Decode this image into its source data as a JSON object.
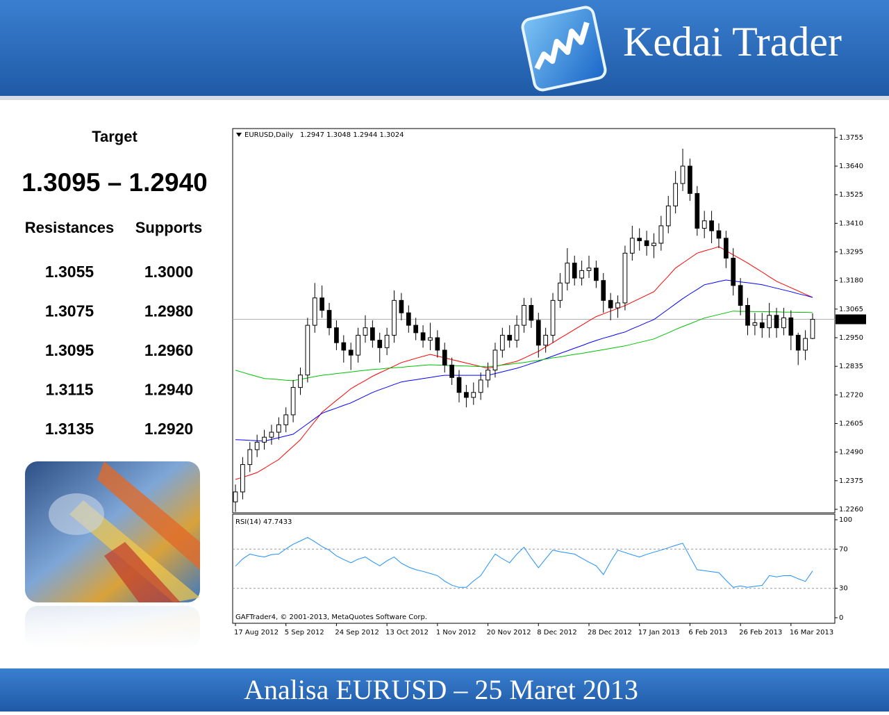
{
  "header": {
    "brand": "Kedai Trader"
  },
  "panel": {
    "target_label": "Target",
    "target": "1.3095 – 1.2940",
    "resistances_label": "Resistances",
    "supports_label": "Supports",
    "resistances": [
      "1.3055",
      "1.3075",
      "1.3095",
      "1.3115",
      "1.3135"
    ],
    "supports": [
      "1.3000",
      "1.2980",
      "1.2960",
      "1.2940",
      "1.2920"
    ]
  },
  "chart_data": [
    {
      "type": "candlestick",
      "title": "EURUSD,Daily",
      "subtitle": "1.2947 1.3048 1.2944 1.3024",
      "up_color": "#ffffff",
      "down_color": "#000000",
      "categories": [
        "17 Aug 2012",
        null,
        null,
        null,
        null,
        null,
        null,
        "5 Sep 2012",
        null,
        null,
        null,
        null,
        null,
        null,
        "24 Sep 2012",
        null,
        null,
        null,
        null,
        null,
        null,
        "13 Oct 2012",
        null,
        null,
        null,
        null,
        null,
        null,
        "1 Nov 2012",
        null,
        null,
        null,
        null,
        null,
        null,
        "20 Nov 2012",
        null,
        null,
        null,
        null,
        null,
        null,
        "8 Dec 2012",
        null,
        null,
        null,
        null,
        null,
        null,
        "28 Dec 2012",
        null,
        null,
        null,
        null,
        null,
        null,
        "17 Jan 2013",
        null,
        null,
        null,
        null,
        null,
        null,
        "6 Feb 2013",
        null,
        null,
        null,
        null,
        null,
        null,
        "26 Feb 2013",
        null,
        null,
        null,
        null,
        null,
        null,
        "16 Mar 2013",
        null,
        null,
        null
      ],
      "open": [
        1.229,
        1.233,
        1.244,
        1.25,
        1.253,
        1.255,
        1.257,
        1.26,
        1.264,
        1.275,
        1.28,
        1.3,
        1.311,
        1.306,
        1.299,
        1.293,
        1.29,
        1.288,
        1.296,
        1.299,
        1.294,
        1.291,
        1.296,
        1.31,
        1.305,
        1.3,
        1.297,
        1.294,
        1.295,
        1.29,
        1.284,
        1.279,
        1.273,
        1.271,
        1.273,
        1.278,
        1.282,
        1.29,
        1.296,
        1.294,
        1.3,
        1.308,
        1.302,
        1.292,
        1.296,
        1.31,
        1.317,
        1.325,
        1.319,
        1.322,
        1.323,
        1.318,
        1.31,
        1.307,
        1.309,
        1.329,
        1.335,
        1.334,
        1.332,
        1.333,
        1.34,
        1.348,
        1.357,
        1.364,
        1.353,
        1.339,
        1.342,
        1.338,
        1.335,
        1.327,
        1.316,
        1.308,
        1.3,
        1.301,
        1.299,
        1.304,
        1.299,
        1.303,
        1.296,
        1.29,
        1.2947
      ],
      "high": [
        1.236,
        1.247,
        1.253,
        1.256,
        1.258,
        1.26,
        1.263,
        1.267,
        1.278,
        1.283,
        1.303,
        1.317,
        1.316,
        1.309,
        1.302,
        1.296,
        1.293,
        1.299,
        1.304,
        1.302,
        1.297,
        1.299,
        1.314,
        1.313,
        1.308,
        1.303,
        1.3,
        1.301,
        1.298,
        1.293,
        1.287,
        1.282,
        1.276,
        1.277,
        1.281,
        1.285,
        1.293,
        1.299,
        1.3,
        1.304,
        1.311,
        1.311,
        1.305,
        1.299,
        1.313,
        1.321,
        1.331,
        1.328,
        1.326,
        1.328,
        1.326,
        1.321,
        1.313,
        1.312,
        1.332,
        1.34,
        1.339,
        1.338,
        1.337,
        1.344,
        1.352,
        1.362,
        1.371,
        1.367,
        1.356,
        1.346,
        1.346,
        1.341,
        1.338,
        1.331,
        1.319,
        1.311,
        1.305,
        1.305,
        1.309,
        1.307,
        1.307,
        1.306,
        1.297,
        1.298,
        1.3048
      ],
      "low": [
        1.225,
        1.23,
        1.241,
        1.247,
        1.25,
        1.252,
        1.254,
        1.257,
        1.261,
        1.272,
        1.277,
        1.297,
        1.303,
        1.296,
        1.29,
        1.285,
        1.282,
        1.285,
        1.293,
        1.291,
        1.285,
        1.288,
        1.293,
        1.302,
        1.297,
        1.294,
        1.291,
        1.29,
        1.287,
        1.281,
        1.276,
        1.269,
        1.267,
        1.268,
        1.27,
        1.275,
        1.279,
        1.287,
        1.291,
        1.291,
        1.297,
        1.299,
        1.287,
        1.289,
        1.293,
        1.307,
        1.314,
        1.316,
        1.316,
        1.319,
        1.315,
        1.305,
        1.302,
        1.303,
        1.306,
        1.326,
        1.33,
        1.328,
        1.327,
        1.33,
        1.337,
        1.345,
        1.354,
        1.35,
        1.336,
        1.335,
        1.333,
        1.331,
        1.323,
        1.312,
        1.304,
        1.296,
        1.296,
        1.295,
        1.295,
        1.295,
        1.296,
        1.29,
        1.284,
        1.286,
        1.2944
      ],
      "close": [
        1.233,
        1.244,
        1.25,
        1.253,
        1.255,
        1.257,
        1.26,
        1.264,
        1.275,
        1.28,
        1.3,
        1.311,
        1.306,
        1.299,
        1.293,
        1.29,
        1.288,
        1.296,
        1.299,
        1.294,
        1.291,
        1.296,
        1.31,
        1.305,
        1.3,
        1.297,
        1.294,
        1.295,
        1.29,
        1.284,
        1.279,
        1.273,
        1.271,
        1.273,
        1.278,
        1.282,
        1.29,
        1.296,
        1.294,
        1.3,
        1.308,
        1.302,
        1.292,
        1.296,
        1.31,
        1.317,
        1.325,
        1.319,
        1.322,
        1.323,
        1.318,
        1.31,
        1.307,
        1.309,
        1.329,
        1.335,
        1.334,
        1.332,
        1.333,
        1.34,
        1.348,
        1.357,
        1.364,
        1.353,
        1.339,
        1.342,
        1.338,
        1.335,
        1.327,
        1.316,
        1.308,
        1.3,
        1.301,
        1.299,
        1.304,
        1.299,
        1.303,
        1.296,
        1.29,
        1.2947,
        1.3024
      ],
      "series": [
        {
          "color": "#ff0000",
          "values": [
            1.238,
            1.2389,
            1.2398,
            1.2408,
            1.2425,
            1.2443,
            1.246,
            1.2487,
            1.2513,
            1.254,
            1.2577,
            1.2613,
            1.265,
            1.2674,
            1.2698,
            1.2721,
            1.2745,
            1.2762,
            1.2778,
            1.2795,
            1.2809,
            1.2822,
            1.2836,
            1.285,
            1.2858,
            1.2867,
            1.2875,
            1.2883,
            1.2876,
            1.2869,
            1.2862,
            1.2855,
            1.2848,
            1.2841,
            1.2834,
            1.2827,
            1.2834,
            1.2841,
            1.2848,
            1.2855,
            1.2868,
            1.2882,
            1.2895,
            1.2913,
            1.293,
            1.2948,
            1.2965,
            1.2983,
            1.3,
            1.3018,
            1.3035,
            1.3046,
            1.3057,
            1.3068,
            1.3079,
            1.3093,
            1.3107,
            1.3121,
            1.3135,
            1.3167,
            1.3198,
            1.323,
            1.325,
            1.327,
            1.329,
            1.3299,
            1.3307,
            1.3316,
            1.33,
            1.3283,
            1.3267,
            1.325,
            1.3232,
            1.3214,
            1.3195,
            1.3177,
            1.3164,
            1.3151,
            1.3138,
            1.3125,
            1.3112
          ]
        },
        {
          "color": "#0000ff",
          "values": [
            1.254,
            1.2539,
            1.2537,
            1.2536,
            1.2534,
            1.2541,
            1.2548,
            1.2555,
            1.2562,
            1.2583,
            1.2604,
            1.2625,
            1.2646,
            1.2657,
            1.2667,
            1.2678,
            1.2688,
            1.2702,
            1.2716,
            1.273,
            1.2741,
            1.2751,
            1.2762,
            1.2772,
            1.2777,
            1.2781,
            1.2786,
            1.279,
            1.2795,
            1.2799,
            1.2799,
            1.2799,
            1.2799,
            1.2799,
            1.2799,
            1.2799,
            1.2806,
            1.2813,
            1.282,
            1.2827,
            1.2836,
            1.2846,
            1.2855,
            1.2866,
            1.2876,
            1.2887,
            1.2897,
            1.2908,
            1.2918,
            1.2929,
            1.2939,
            1.2948,
            1.2956,
            1.2965,
            1.2973,
            1.2986,
            1.2998,
            1.3011,
            1.3023,
            1.3044,
            1.3065,
            1.3086,
            1.3107,
            1.3126,
            1.3144,
            1.3163,
            1.3169,
            1.3176,
            1.3182,
            1.3178,
            1.3174,
            1.3171,
            1.3167,
            1.3163,
            1.3156,
            1.3149,
            1.3142,
            1.3135,
            1.3127,
            1.312,
            1.3112
          ]
        },
        {
          "color": "#00c000",
          "values": [
            1.2819,
            1.2811,
            1.2802,
            1.2794,
            1.2786,
            1.2784,
            1.2782,
            1.2779,
            1.2777,
            1.2783,
            1.2788,
            1.2794,
            1.2799,
            1.2802,
            1.2806,
            1.2809,
            1.2812,
            1.2816,
            1.2819,
            1.2822,
            1.2824,
            1.2827,
            1.2829,
            1.2831,
            1.2834,
            1.2836,
            1.2839,
            1.2841,
            1.284,
            1.2839,
            1.2838,
            1.2837,
            1.2836,
            1.2835,
            1.2834,
            1.2833,
            1.2836,
            1.284,
            1.2843,
            1.2847,
            1.285,
            1.2855,
            1.2859,
            1.2864,
            1.2869,
            1.2873,
            1.2878,
            1.2883,
            1.2887,
            1.2892,
            1.2897,
            1.2902,
            1.2907,
            1.2912,
            1.2917,
            1.2924,
            1.2931,
            1.2938,
            1.2945,
            1.2958,
            1.297,
            1.2983,
            1.2995,
            1.3006,
            1.3018,
            1.3029,
            1.3036,
            1.3043,
            1.305,
            1.3057,
            1.3056,
            1.3056,
            1.3055,
            1.3055,
            1.3054,
            1.3054,
            1.3053,
            1.3053,
            1.3052,
            1.3052,
            1.3051
          ]
        }
      ],
      "last_price": {
        "value": 1.3024,
        "label": "1.3024"
      },
      "ylim": [
        1.2246,
        1.3791
      ],
      "yticks": [
        {
          "value": 1.226,
          "label": "1.2260"
        },
        1.2375,
        {
          "value": 1.249,
          "label": "1.2490"
        },
        1.2605,
        {
          "value": 1.272,
          "label": "1.2720"
        },
        1.2835,
        {
          "value": 1.295,
          "label": "1.2950"
        },
        1.3065,
        {
          "value": 1.318,
          "label": "1.3180"
        },
        1.3295,
        {
          "value": 1.341,
          "label": "1.3410"
        },
        1.3525,
        {
          "value": 1.364,
          "label": "1.3640"
        },
        1.3755
      ]
    },
    {
      "type": "line",
      "title": "RSI(14) 47.7433",
      "footnote": "GAFTrader4, © 2001-2013, MetaQuotes Software Corp.",
      "color": "#1e90ff",
      "values": [
        52.6,
        60.1,
        65.0,
        63.2,
        62.0,
        64.5,
        65.0,
        70.3,
        75.0,
        78.4,
        82.0,
        77.5,
        72.6,
        69.0,
        63.1,
        59.4,
        56.0,
        59.8,
        62.0,
        57.2,
        53.0,
        58.1,
        62.0,
        55.6,
        51.8,
        49.0,
        47.3,
        45.1,
        43.0,
        37.4,
        33.2,
        31.0,
        31.0,
        37.5,
        43.0,
        54.2,
        65.0,
        60.3,
        56.0,
        64.8,
        72.0,
        60.9,
        51.0,
        60.2,
        69.0,
        67.4,
        66.1,
        65.0,
        60.8,
        56.7,
        53.0,
        44.0,
        57.3,
        69.0,
        66.5,
        64.2,
        62.0,
        64.7,
        66.9,
        69.0,
        71.4,
        73.8,
        76.0,
        62.3,
        49.0,
        48.1,
        47.0,
        46.0,
        38.2,
        31.0,
        32.4,
        31.0,
        32.1,
        33.0,
        43.0,
        41.6,
        42.9,
        43.0,
        39.8,
        37.0,
        47.7433
      ],
      "ylim": [
        0,
        100
      ],
      "yticks": [
        0,
        30,
        70,
        100
      ]
    }
  ],
  "footer": {
    "title": "Analisa EURUSD –  25 Maret 2013"
  }
}
